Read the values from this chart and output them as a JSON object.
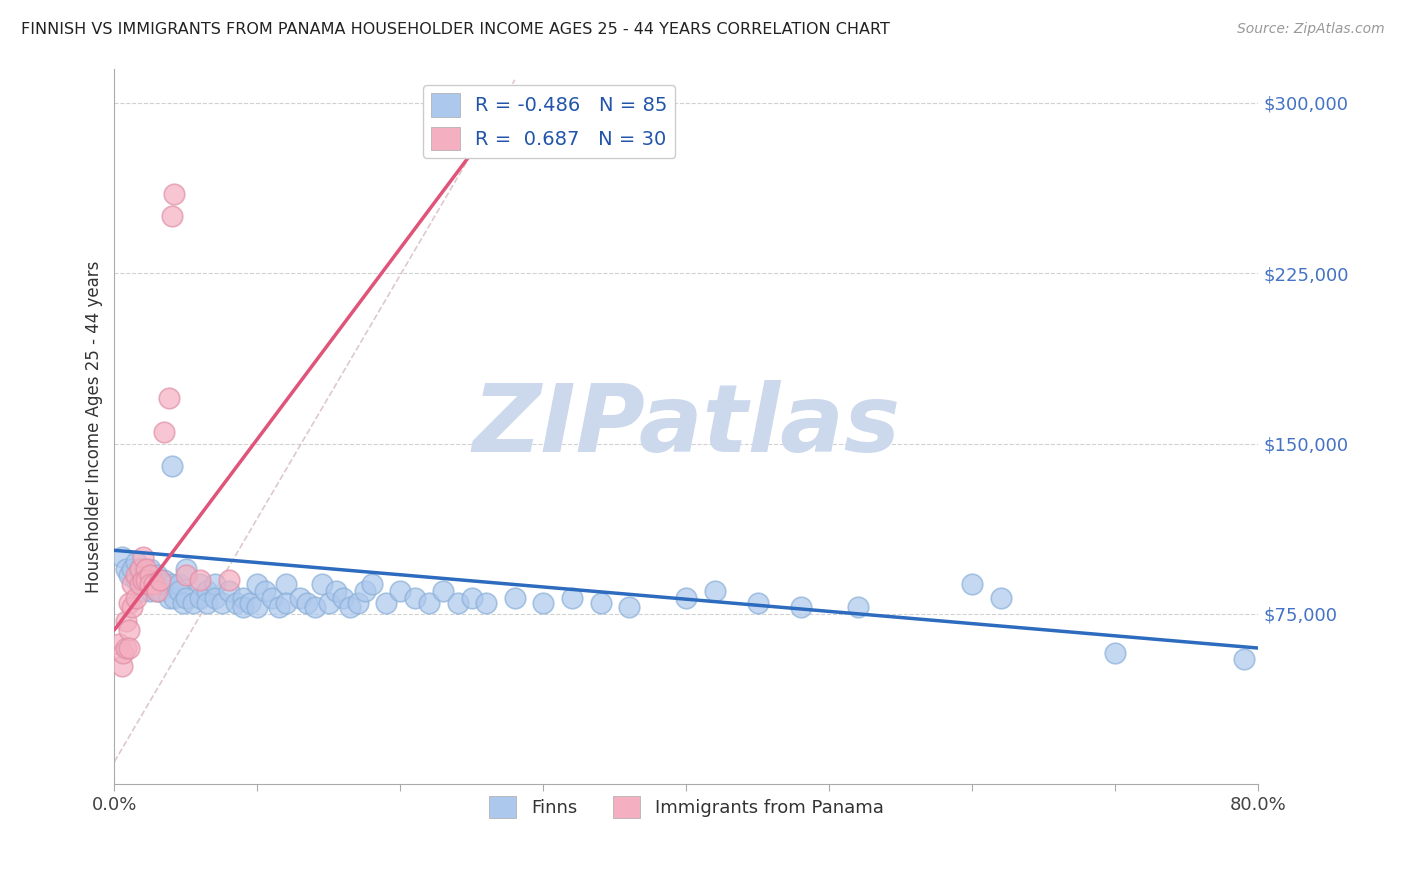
{
  "title": "FINNISH VS IMMIGRANTS FROM PANAMA HOUSEHOLDER INCOME AGES 25 - 44 YEARS CORRELATION CHART",
  "source": "Source: ZipAtlas.com",
  "ylabel": "Householder Income Ages 25 - 44 years",
  "y_ticks": [
    75000,
    150000,
    225000,
    300000
  ],
  "y_tick_labels": [
    "$75,000",
    "$150,000",
    "$225,000",
    "$300,000"
  ],
  "xlim": [
    0,
    0.8
  ],
  "ylim": [
    0,
    315000
  ],
  "blue_R": -0.486,
  "blue_N": 85,
  "pink_R": 0.687,
  "pink_N": 30,
  "blue_color": "#adc8ed",
  "blue_edge_color": "#8ab0d8",
  "blue_line_color": "#2d6bbf",
  "pink_color": "#f4afc0",
  "pink_edge_color": "#e090a8",
  "pink_line_color": "#e0547a",
  "ref_line_color": "#d0b0b8",
  "background_color": "#ffffff",
  "grid_color": "#cccccc",
  "title_color": "#222222",
  "watermark_color": "#ccd8ec",
  "watermark_text": "ZIPatlas",
  "finns_label": "Finns",
  "panama_label": "Immigrants from Panama",
  "blue_line_x0": 0.0,
  "blue_line_y0": 103000,
  "blue_line_x1": 0.8,
  "blue_line_y1": 60000,
  "pink_line_x0": 0.0,
  "pink_line_y0": 68000,
  "pink_line_x1": 0.25,
  "pink_line_y1": 278000,
  "ref_line_x0": 0.0,
  "ref_line_y0": 10000,
  "ref_line_x1": 0.28,
  "ref_line_y1": 310000,
  "blue_x": [
    0.005,
    0.008,
    0.01,
    0.012,
    0.015,
    0.015,
    0.018,
    0.018,
    0.02,
    0.02,
    0.022,
    0.022,
    0.025,
    0.025,
    0.025,
    0.028,
    0.028,
    0.03,
    0.03,
    0.032,
    0.032,
    0.035,
    0.035,
    0.038,
    0.04,
    0.04,
    0.042,
    0.045,
    0.045,
    0.048,
    0.05,
    0.05,
    0.055,
    0.06,
    0.06,
    0.065,
    0.065,
    0.07,
    0.07,
    0.075,
    0.08,
    0.085,
    0.09,
    0.09,
    0.095,
    0.1,
    0.1,
    0.105,
    0.11,
    0.115,
    0.12,
    0.12,
    0.13,
    0.135,
    0.14,
    0.145,
    0.15,
    0.155,
    0.16,
    0.165,
    0.17,
    0.175,
    0.18,
    0.19,
    0.2,
    0.21,
    0.22,
    0.23,
    0.24,
    0.25,
    0.26,
    0.28,
    0.3,
    0.32,
    0.34,
    0.36,
    0.4,
    0.42,
    0.45,
    0.48,
    0.52,
    0.6,
    0.62,
    0.7,
    0.79
  ],
  "blue_y": [
    100000,
    95000,
    92000,
    95000,
    90000,
    98000,
    88000,
    95000,
    85000,
    92000,
    88000,
    90000,
    95000,
    85000,
    92000,
    88000,
    90000,
    85000,
    92000,
    88000,
    85000,
    90000,
    88000,
    82000,
    140000,
    88000,
    82000,
    88000,
    85000,
    80000,
    95000,
    82000,
    80000,
    88000,
    82000,
    85000,
    80000,
    88000,
    82000,
    80000,
    85000,
    80000,
    82000,
    78000,
    80000,
    88000,
    78000,
    85000,
    82000,
    78000,
    88000,
    80000,
    82000,
    80000,
    78000,
    88000,
    80000,
    85000,
    82000,
    78000,
    80000,
    85000,
    88000,
    80000,
    85000,
    82000,
    80000,
    85000,
    80000,
    82000,
    80000,
    82000,
    80000,
    82000,
    80000,
    78000,
    82000,
    85000,
    80000,
    78000,
    78000,
    88000,
    82000,
    58000,
    55000
  ],
  "pink_x": [
    0.003,
    0.005,
    0.006,
    0.008,
    0.008,
    0.01,
    0.01,
    0.01,
    0.012,
    0.012,
    0.015,
    0.015,
    0.018,
    0.018,
    0.02,
    0.02,
    0.022,
    0.022,
    0.025,
    0.025,
    0.028,
    0.03,
    0.032,
    0.035,
    0.038,
    0.04,
    0.042,
    0.05,
    0.06,
    0.08
  ],
  "pink_y": [
    62000,
    52000,
    58000,
    72000,
    60000,
    80000,
    68000,
    60000,
    88000,
    78000,
    92000,
    82000,
    95000,
    88000,
    100000,
    90000,
    95000,
    90000,
    92000,
    88000,
    88000,
    85000,
    90000,
    155000,
    170000,
    250000,
    260000,
    92000,
    90000,
    90000
  ]
}
